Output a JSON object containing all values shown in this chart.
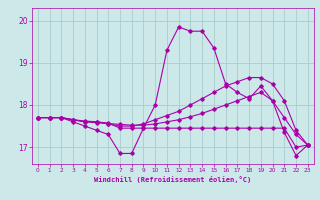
{
  "xlabel": "Windchill (Refroidissement éolien,°C)",
  "ylabel": "",
  "xlim": [
    -0.5,
    23.5
  ],
  "ylim": [
    16.6,
    20.3
  ],
  "yticks": [
    17,
    18,
    19,
    20
  ],
  "xticks": [
    0,
    1,
    2,
    3,
    4,
    5,
    6,
    7,
    8,
    9,
    10,
    11,
    12,
    13,
    14,
    15,
    16,
    17,
    18,
    19,
    20,
    21,
    22,
    23
  ],
  "bg_color": "#cce8e8",
  "grid_color": "#aacccc",
  "line_color": "#aa00aa",
  "lines": [
    {
      "x": [
        0,
        1,
        2,
        3,
        4,
        5,
        6,
        7,
        8,
        9,
        10,
        11,
        12,
        13,
        14,
        15,
        16,
        17,
        18,
        19,
        20,
        21,
        22,
        23
      ],
      "y": [
        17.7,
        17.7,
        17.7,
        17.6,
        17.5,
        17.4,
        17.3,
        16.85,
        16.85,
        17.45,
        18.0,
        19.3,
        19.85,
        19.75,
        19.75,
        19.35,
        18.5,
        18.3,
        18.15,
        18.45,
        18.1,
        17.35,
        16.8,
        17.05
      ]
    },
    {
      "x": [
        0,
        1,
        2,
        3,
        4,
        5,
        6,
        7,
        8,
        9,
        10,
        11,
        12,
        13,
        14,
        15,
        16,
        17,
        18,
        19,
        20,
        21,
        22,
        23
      ],
      "y": [
        17.7,
        17.7,
        17.7,
        17.65,
        17.6,
        17.6,
        17.55,
        17.5,
        17.5,
        17.55,
        17.65,
        17.75,
        17.85,
        18.0,
        18.15,
        18.3,
        18.45,
        18.55,
        18.65,
        18.65,
        18.5,
        18.1,
        17.4,
        17.05
      ]
    },
    {
      "x": [
        0,
        1,
        2,
        3,
        4,
        5,
        6,
        7,
        8,
        9,
        10,
        11,
        12,
        13,
        14,
        15,
        16,
        17,
        18,
        19,
        20,
        21,
        22,
        23
      ],
      "y": [
        17.7,
        17.7,
        17.7,
        17.65,
        17.6,
        17.58,
        17.56,
        17.54,
        17.52,
        17.52,
        17.55,
        17.6,
        17.65,
        17.72,
        17.8,
        17.9,
        18.0,
        18.1,
        18.2,
        18.3,
        18.1,
        17.7,
        17.3,
        17.05
      ]
    },
    {
      "x": [
        0,
        1,
        2,
        3,
        4,
        5,
        6,
        7,
        8,
        9,
        10,
        11,
        12,
        13,
        14,
        15,
        16,
        17,
        18,
        19,
        20,
        21,
        22,
        23
      ],
      "y": [
        17.7,
        17.7,
        17.7,
        17.65,
        17.62,
        17.6,
        17.57,
        17.45,
        17.45,
        17.45,
        17.45,
        17.45,
        17.45,
        17.45,
        17.45,
        17.45,
        17.45,
        17.45,
        17.45,
        17.45,
        17.45,
        17.45,
        17.0,
        17.05
      ]
    }
  ]
}
